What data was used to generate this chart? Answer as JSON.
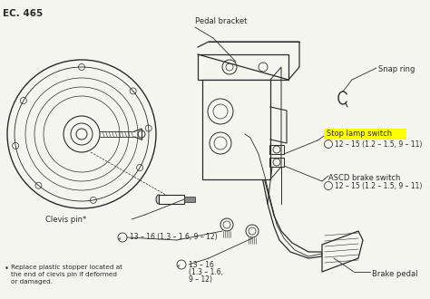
{
  "title": "EC. 465",
  "bg_color": "#f5f5f0",
  "line_color": "#2a2a2a",
  "labels": {
    "pedal_bracket": "Pedal bracket",
    "snap_ring": "Snap ring",
    "stop_lamp_switch": "Stop lamp switch",
    "stop_lamp_ref": "12 – 15 (1.2 – 1.5, 9 – 11)",
    "ascd_brake_switch": "ASCD brake switch",
    "ascd_ref": "12 – 15 (1.2 – 1.5, 9 – 11)",
    "clevis_pin": "Clevis pin*",
    "torque1": "13 – 16 (1.3 – 1.6, 9 – 12)",
    "torque2_line1": "13 – 16",
    "torque2_line2": "(1.3 – 1.6,",
    "torque2_line3": "9 – 12)",
    "brake_pedal": "Brake pedal",
    "note": "Replace plastic stopper located at\nthe end of clevis pin if deformed\nor damaged."
  },
  "highlight_color": "#ffff00",
  "fig_width": 4.74,
  "fig_height": 3.3,
  "dpi": 100
}
